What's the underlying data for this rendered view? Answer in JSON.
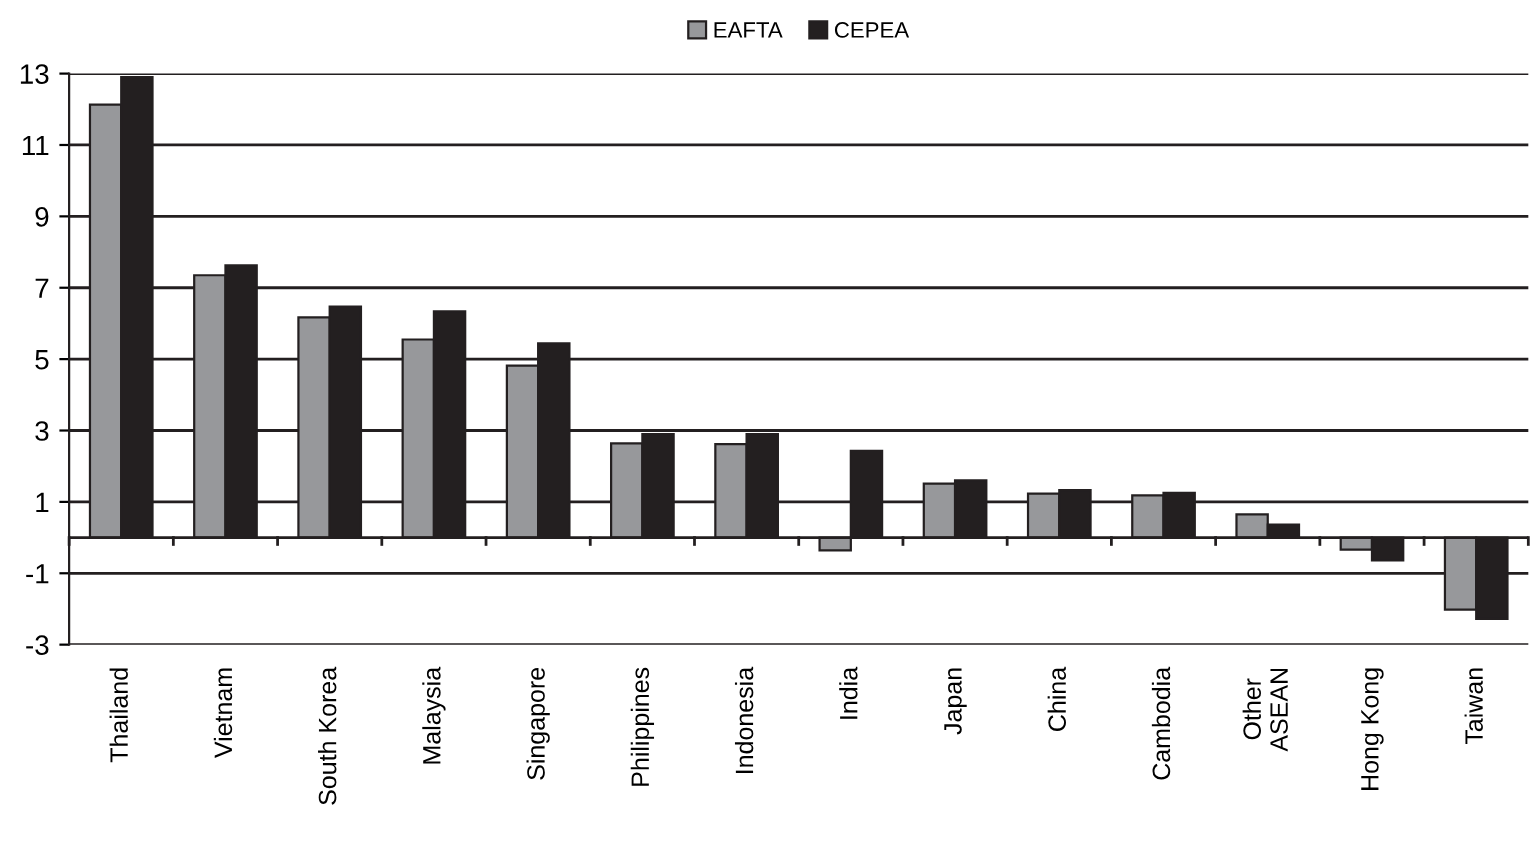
{
  "chart_data": {
    "type": "bar",
    "categories": [
      "Thailand",
      "Vietnam",
      "South Korea",
      "Malaysia",
      "Singapore",
      "Philippines",
      "Indonesia",
      "India",
      "Japan",
      "China",
      "Cambodia",
      "Other\nASEAN",
      "Hong Kong",
      "Taiwan"
    ],
    "series": [
      {
        "name": "EAFTA",
        "color": "#97989b",
        "values": [
          12.13,
          7.35,
          6.17,
          5.55,
          4.82,
          2.64,
          2.62,
          -0.36,
          1.51,
          1.23,
          1.18,
          0.65,
          -0.34,
          -2.02
        ]
      },
      {
        "name": "CEPEA",
        "color": "#231f20",
        "values": [
          12.9,
          7.63,
          6.47,
          6.34,
          5.44,
          2.9,
          2.9,
          2.43,
          1.6,
          1.33,
          1.25,
          0.36,
          -0.64,
          -2.28
        ]
      }
    ],
    "ylim": [
      -3,
      13
    ],
    "yticks": [
      -3,
      -1,
      1,
      3,
      5,
      7,
      9,
      11,
      13
    ],
    "grid": "y",
    "legend": "top"
  }
}
